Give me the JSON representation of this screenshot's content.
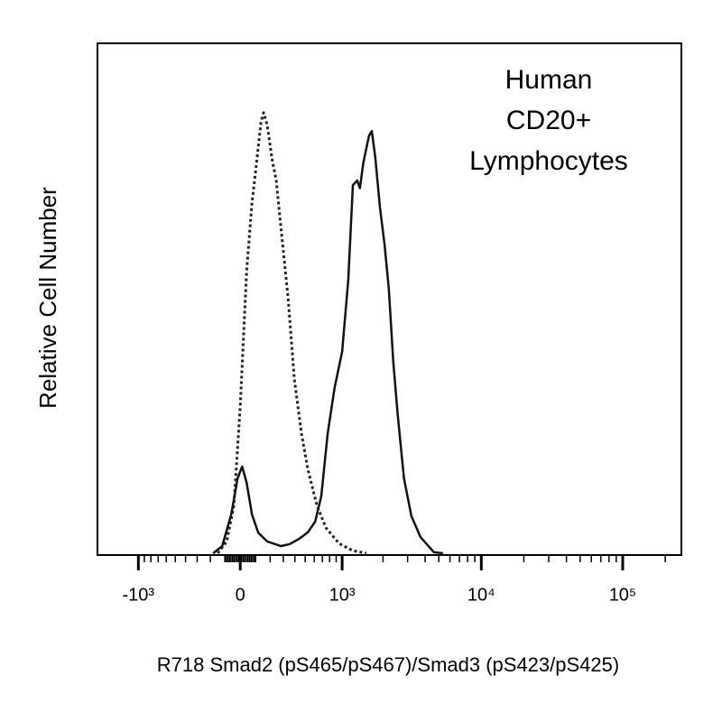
{
  "chart_data": {
    "type": "line",
    "xlabel": "R718 Smad2 (pS465/pS467)/Smad3 (pS423/pS425)",
    "ylabel": "Relative Cell Number",
    "annotation": [
      "Human",
      "CD20+",
      "Lymphocytes"
    ],
    "xscale": "biexponential",
    "xlim": [
      -2000,
      260000
    ],
    "xticks": [
      {
        "value": -1000,
        "label": "-10³"
      },
      0,
      {
        "value": 1000,
        "label": "10³"
      },
      {
        "value": 10000,
        "label": "10⁴"
      },
      {
        "value": 100000,
        "label": "10⁵"
      }
    ],
    "ylim": [
      0,
      100
    ],
    "series": [
      {
        "color": "#222222",
        "style": "dotted",
        "x": [
          -148,
          -88,
          -41,
          0,
          41,
          76,
          106,
          136,
          154,
          180,
          212,
          245,
          280,
          340,
          394,
          462,
          528,
          631,
          749,
          949,
          1204,
          1513
        ],
        "values": [
          0,
          2.3,
          9.4,
          28.8,
          55.4,
          68.7,
          76.6,
          84.6,
          86.4,
          83.9,
          77.5,
          73.1,
          64.2,
          50.1,
          34.2,
          23.5,
          16.5,
          9.4,
          5.0,
          1.9,
          0.5,
          0
        ]
      },
      {
        "color": "#111111",
        "style": "solid",
        "x": [
          -180,
          -118,
          -58,
          -17,
          12,
          41,
          76,
          118,
          180,
          280,
          354,
          437,
          528,
          610,
          686,
          773,
          874,
          1000,
          1113,
          1204,
          1297,
          1357,
          1440,
          1584,
          1660,
          1761,
          1899,
          2047,
          2202,
          2369,
          2549,
          2826,
          3192,
          3700,
          4618,
          5352
        ],
        "values": [
          0,
          1.4,
          7.6,
          14.7,
          17.0,
          13.8,
          7.6,
          4.0,
          2.3,
          1.4,
          1.8,
          2.8,
          4.1,
          6.2,
          11.2,
          23.5,
          32.4,
          39.5,
          53.6,
          72.2,
          73.1,
          71.6,
          76.6,
          81.9,
          82.8,
          77.5,
          67.8,
          60.7,
          51.9,
          37.7,
          27.1,
          14.7,
          7.3,
          3.2,
          0.2,
          0
        ]
      }
    ]
  }
}
